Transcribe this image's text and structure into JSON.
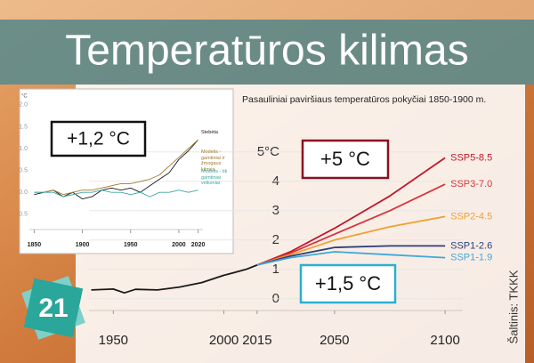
{
  "title": "Temperatūros kilimas",
  "badge": "21",
  "source": "Šaltinis: TKKK",
  "chart_data": [
    {
      "type": "line",
      "subtitle": "Pasauliniai paviršiaus temperatūros pokyčiai 1850-1900 m.",
      "xlim": [
        1939,
        2108
      ],
      "xticks": [
        1950,
        2000,
        2015,
        2050,
        2100
      ],
      "ylim": [
        -0.4,
        5.6
      ],
      "yticks": [
        0,
        1,
        2,
        3,
        4,
        {
          "value": 5,
          "label": "5°C"
        }
      ],
      "grid": true,
      "direct_labels": true,
      "annotations": [
        "+5 °C",
        "+1,5 °C"
      ],
      "series": [
        {
          "color": "#1a1a1a",
          "x": [
            1940,
            1950,
            1955,
            1960,
            1970,
            1980,
            1990,
            2000,
            2005,
            2010,
            2015
          ],
          "values": [
            0.3,
            0.33,
            0.2,
            0.32,
            0.3,
            0.4,
            0.55,
            0.8,
            0.9,
            1.0,
            1.15
          ]
        },
        {
          "name": "SSP5-8.5",
          "color": "#c0182a",
          "x": [
            2015,
            2030,
            2050,
            2075,
            2100
          ],
          "values": [
            1.15,
            1.6,
            2.4,
            3.5,
            4.8
          ]
        },
        {
          "name": "SSP3-7.0",
          "color": "#d8343c",
          "x": [
            2015,
            2030,
            2050,
            2075,
            2100
          ],
          "values": [
            1.15,
            1.55,
            2.2,
            3.0,
            3.9
          ]
        },
        {
          "name": "SSP2-4.5",
          "color": "#f0a030",
          "x": [
            2015,
            2030,
            2050,
            2075,
            2100
          ],
          "values": [
            1.15,
            1.5,
            2.0,
            2.45,
            2.8
          ]
        },
        {
          "name": "SSP1-2.6",
          "color": "#2c3e7a",
          "x": [
            2015,
            2030,
            2050,
            2075,
            2100
          ],
          "values": [
            1.15,
            1.45,
            1.75,
            1.8,
            1.8
          ]
        },
        {
          "name": "SSP1-1.9",
          "color": "#40a8d8",
          "x": [
            2015,
            2030,
            2050,
            2075,
            2100
          ],
          "values": [
            1.15,
            1.4,
            1.6,
            1.5,
            1.4
          ]
        }
      ]
    },
    {
      "type": "line",
      "y_label": "°C",
      "xlim": [
        1845,
        2025
      ],
      "xticks": [
        1850,
        1900,
        1950,
        2000,
        2020
      ],
      "ylim": [
        -0.85,
        2.2
      ],
      "yticks": [
        {
          "value": -0.5,
          "label": "-0.5"
        },
        {
          "value": 0,
          "label": "0.0"
        },
        {
          "value": 0.5,
          "label": "0.5"
        },
        {
          "value": 1,
          "label": "1.0"
        },
        {
          "value": 1.5,
          "label": "1.5"
        },
        {
          "value": 2,
          "label": "2.0"
        }
      ],
      "grid": false,
      "legend": "right",
      "annotations": [
        "+1,2 °C"
      ],
      "series": [
        {
          "name": "Stebėta",
          "color": "#1a1a1a",
          "x": [
            1850,
            1860,
            1870,
            1880,
            1890,
            1900,
            1910,
            1920,
            1930,
            1940,
            1950,
            1960,
            1970,
            1980,
            1990,
            2000,
            2010,
            2020
          ],
          "values": [
            -0.05,
            0.0,
            0.05,
            -0.1,
            0.0,
            -0.15,
            -0.1,
            0.05,
            0.1,
            0.05,
            0.1,
            0.0,
            0.15,
            0.3,
            0.45,
            0.75,
            0.95,
            1.2
          ]
        },
        {
          "name": "Modelis - gamtiniai ir žmogaus kilmės",
          "color": "#a07a30",
          "x": [
            1850,
            1860,
            1870,
            1880,
            1890,
            1900,
            1910,
            1920,
            1930,
            1940,
            1950,
            1960,
            1970,
            1980,
            1990,
            2000,
            2010,
            2020
          ],
          "values": [
            0.0,
            0.0,
            0.05,
            -0.05,
            0.0,
            0.05,
            0.05,
            0.1,
            0.15,
            0.2,
            0.2,
            0.25,
            0.3,
            0.4,
            0.6,
            0.8,
            1.0,
            1.2
          ]
        },
        {
          "name": "Modelis - tik gamtiniai veiksniai",
          "color": "#3aa8a0",
          "x": [
            1850,
            1860,
            1870,
            1880,
            1890,
            1900,
            1910,
            1920,
            1930,
            1940,
            1950,
            1960,
            1970,
            1980,
            1990,
            2000,
            2010,
            2020
          ],
          "values": [
            0.0,
            0.0,
            0.0,
            -0.1,
            -0.05,
            0.0,
            0.0,
            0.05,
            0.0,
            0.0,
            -0.05,
            0.0,
            -0.1,
            0.0,
            0.0,
            0.05,
            0.0,
            0.05
          ]
        }
      ]
    }
  ]
}
